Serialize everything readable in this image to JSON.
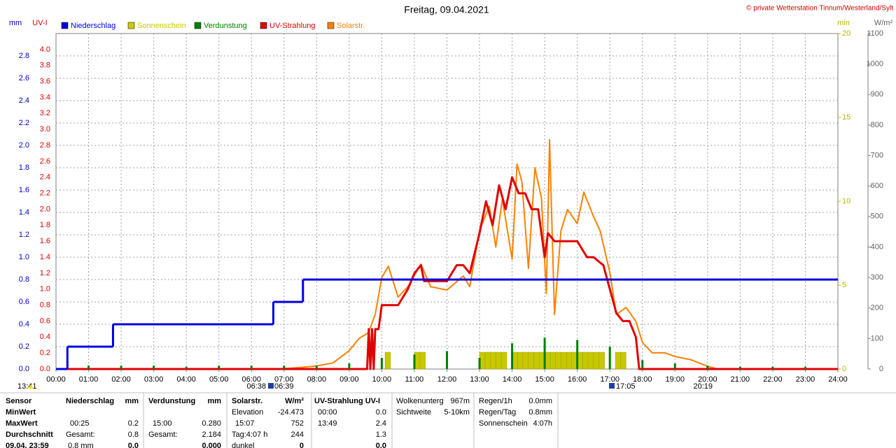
{
  "chart_data": {
    "type": "line",
    "title": "Freitag, 09.04.2021",
    "copyright": "© private Wetterstation Tinnum/Westerland/Sylt",
    "xlim": [
      0,
      24
    ],
    "xticks": [
      {
        "value": 0,
        "label": "00:00"
      },
      {
        "value": 1,
        "label": "01:00"
      },
      {
        "value": 2,
        "label": "02:00"
      },
      {
        "value": 3,
        "label": "03:00"
      },
      {
        "value": 4,
        "label": "04:00"
      },
      {
        "value": 5,
        "label": "05:00"
      },
      {
        "value": 6,
        "label": "06:00"
      },
      {
        "value": 7,
        "label": "07:00"
      },
      {
        "value": 8,
        "label": "08:00"
      },
      {
        "value": 9,
        "label": "09:00"
      },
      {
        "value": 10,
        "label": "10:00"
      },
      {
        "value": 11,
        "label": "11:00"
      },
      {
        "value": 12,
        "label": "12:00"
      },
      {
        "value": 13,
        "label": "13:00"
      },
      {
        "value": 14,
        "label": "14:00"
      },
      {
        "value": 15,
        "label": "15:00"
      },
      {
        "value": 16,
        "label": "16:00"
      },
      {
        "value": 17,
        "label": "17:00"
      },
      {
        "value": 18,
        "label": "18:00"
      },
      {
        "value": 19,
        "label": "19:00"
      },
      {
        "value": 20,
        "label": "20:00"
      },
      {
        "value": 21,
        "label": "21:00"
      },
      {
        "value": 22,
        "label": "22:00"
      },
      {
        "value": 23,
        "label": "23:00"
      },
      {
        "value": 24,
        "label": "24:00"
      }
    ],
    "grid": true,
    "axes": {
      "mm": {
        "label": "mm",
        "color": "#0000c0",
        "ylim": [
          0,
          3
        ],
        "yticks": [
          {
            "value": 0,
            "label": "0.0"
          },
          0.2,
          0.4,
          0.6,
          0.8,
          {
            "value": 1,
            "label": "1.0"
          },
          1.2,
          1.4,
          1.6,
          1.8,
          {
            "value": 2,
            "label": "2.0"
          },
          2.2,
          2.4,
          2.6,
          2.8
        ]
      },
      "uv": {
        "label": "UV-I",
        "color": "#e00000",
        "ylim": [
          0,
          4.2
        ],
        "yticks": [
          {
            "value": 0,
            "label": "0.0"
          },
          0.2,
          0.4,
          0.6,
          0.8,
          {
            "value": 1,
            "label": "1.0"
          },
          1.2,
          1.4,
          1.6,
          1.8,
          {
            "value": 2,
            "label": "2.0"
          },
          2.2,
          2.4,
          2.6,
          2.8,
          {
            "value": 3,
            "label": "3.0"
          },
          3.2,
          3.4,
          3.6,
          3.8,
          {
            "value": 4,
            "label": "4.0"
          }
        ]
      },
      "min": {
        "label": "min",
        "color": "#b8b800",
        "ylim": [
          0,
          20
        ],
        "yticks": [
          0,
          5,
          10,
          15,
          20
        ]
      },
      "wm2": {
        "label": "W/m²",
        "color": "#606060",
        "ylim": [
          0,
          1100
        ],
        "yticks": [
          0,
          100,
          200,
          300,
          400,
          500,
          600,
          700,
          800,
          900,
          1000,
          1100
        ]
      }
    },
    "series": [
      {
        "name": "Niederschlag",
        "color": "#0000e0",
        "axis": "mm",
        "style": "step",
        "x": [
          0,
          0.35,
          1.75,
          6.67,
          7.58
        ],
        "values": [
          0,
          0.2,
          0.4,
          0.6,
          0.8
        ]
      },
      {
        "name": "Sonnenschein",
        "color": "#c8c800",
        "axis": "min",
        "style": "bars",
        "x": [
          10.1,
          11.0,
          11.17,
          13.0,
          13.17,
          13.33,
          13.5,
          13.67,
          14.0,
          14.17,
          14.33,
          14.5,
          14.67,
          14.83,
          15.0,
          15.17,
          15.33,
          15.5,
          15.67,
          15.83,
          16.0,
          16.17,
          16.33,
          16.5,
          16.67,
          17.17,
          17.33
        ],
        "values": [
          1,
          1,
          1,
          1,
          1,
          1,
          1,
          1,
          1,
          1,
          1,
          1,
          1,
          1,
          1,
          1,
          1,
          1,
          1,
          1,
          1,
          1,
          1,
          1,
          1,
          1,
          1
        ]
      },
      {
        "name": "Verdunstung",
        "color": "#008000",
        "axis": "mm",
        "style": "spikes",
        "x": [
          1,
          2,
          3,
          4,
          5,
          6,
          7,
          8,
          9,
          10,
          11,
          12,
          13,
          14,
          15,
          16,
          17,
          18,
          19,
          20,
          21,
          22,
          23
        ],
        "values": [
          0.03,
          0.03,
          0.03,
          0.02,
          0.03,
          0.03,
          0.03,
          0.03,
          0.05,
          0.1,
          0.13,
          0.16,
          0.1,
          0.23,
          0.28,
          0.26,
          0.2,
          0.08,
          0.05,
          0.03,
          0.02,
          0.02,
          0.02
        ]
      },
      {
        "name": "UV-Strahlung",
        "color": "#e00000",
        "axis": "uv",
        "style": "line",
        "x": [
          0,
          9.55,
          9.6,
          9.65,
          9.7,
          9.75,
          9.8,
          9.9,
          10.0,
          10.1,
          10.3,
          10.5,
          10.8,
          11.0,
          11.2,
          11.3,
          11.5,
          12.0,
          12.3,
          12.5,
          12.7,
          13.0,
          13.2,
          13.4,
          13.6,
          13.8,
          14.0,
          14.2,
          14.4,
          14.6,
          14.8,
          15.0,
          15.1,
          15.3,
          15.5,
          15.8,
          16.0,
          16.3,
          16.5,
          16.8,
          17.0,
          17.2,
          17.4,
          17.6,
          17.8,
          17.9,
          18.0,
          24
        ],
        "values": [
          0,
          0,
          0.5,
          0,
          0.5,
          0,
          0.5,
          0.5,
          0.8,
          0.8,
          0.8,
          0.8,
          1.0,
          1.2,
          1.3,
          1.1,
          1.1,
          1.1,
          1.3,
          1.3,
          1.2,
          1.7,
          2.1,
          1.8,
          2.3,
          2.0,
          2.4,
          2.2,
          2.2,
          2.0,
          2.0,
          1.4,
          1.7,
          1.6,
          1.6,
          1.6,
          1.6,
          1.4,
          1.4,
          1.3,
          1.0,
          0.7,
          0.6,
          0.6,
          0.4,
          0,
          0,
          0
        ]
      },
      {
        "name": "Solarstr.",
        "color": "#ff8000",
        "axis": "wm2",
        "style": "line",
        "x": [
          0,
          6.8,
          7.5,
          8.0,
          8.5,
          9.0,
          9.3,
          9.6,
          9.8,
          10.0,
          10.2,
          10.5,
          10.8,
          11.2,
          11.5,
          12.0,
          12.5,
          12.7,
          13.0,
          13.3,
          13.5,
          13.7,
          14.0,
          14.15,
          14.3,
          14.5,
          14.7,
          14.9,
          15.05,
          15.15,
          15.3,
          15.5,
          15.7,
          16.0,
          16.2,
          16.5,
          16.7,
          17.0,
          17.2,
          17.5,
          17.8,
          18.0,
          18.3,
          18.7,
          19.0,
          19.5,
          20.0,
          20.3,
          24
        ],
        "values": [
          0,
          0,
          5,
          10,
          20,
          60,
          100,
          120,
          180,
          300,
          337,
          236,
          270,
          344,
          270,
          259,
          305,
          270,
          454,
          534,
          400,
          557,
          360,
          672,
          615,
          330,
          660,
          560,
          248,
          752,
          179,
          454,
          523,
          477,
          580,
          500,
          454,
          317,
          179,
          202,
          156,
          87,
          53,
          53,
          41,
          30,
          9,
          0,
          0
        ]
      }
    ],
    "markers": [
      "13:41",
      "06:38",
      "06:39",
      "17:05",
      "20:19"
    ]
  },
  "stats": {
    "rows": [
      "Sensor",
      "MinWert",
      "MaxWert",
      "Durchschnitt",
      "09.04. 23:59"
    ],
    "niederschlag": {
      "header": "Niederschlag",
      "unit": "mm",
      "max_time": "00:25",
      "max": "0.2",
      "total_label": "Gesamt:",
      "total": "0.8",
      "day": "0.8 mm",
      "day_value": "0.0"
    },
    "verdunstung": {
      "header": "Verdunstung",
      "unit": "mm",
      "max_time": "15:00",
      "max": "0.280",
      "total_label": "Gesamt:",
      "total": "2.184",
      "day_value": "0.000"
    },
    "solar": {
      "header": "Solarstr.",
      "unit": "W/m²",
      "elevation_label": "Elevation",
      "elevation": "-24.473",
      "max_time": "15:07",
      "max": "752",
      "avg_label": "Tag:4:07 h",
      "avg": "244",
      "now_label": "dunkel",
      "now": "0"
    },
    "uv": {
      "header": "UV-Strahlung UV-I",
      "min_time": "00:00",
      "min": "0.0",
      "max_time": "13:49",
      "max": "2.4",
      "avg": "1.3",
      "now": "0.0"
    },
    "clouds": [
      [
        "Wolkenunterg",
        "967m"
      ],
      [
        "Sichtweite",
        "5-10km"
      ]
    ],
    "rain": [
      [
        "Regen/1h",
        "0.0mm"
      ],
      [
        "Regen/Tag",
        "0.8mm"
      ],
      [
        "Sonnenschein",
        "4:07h"
      ]
    ]
  }
}
